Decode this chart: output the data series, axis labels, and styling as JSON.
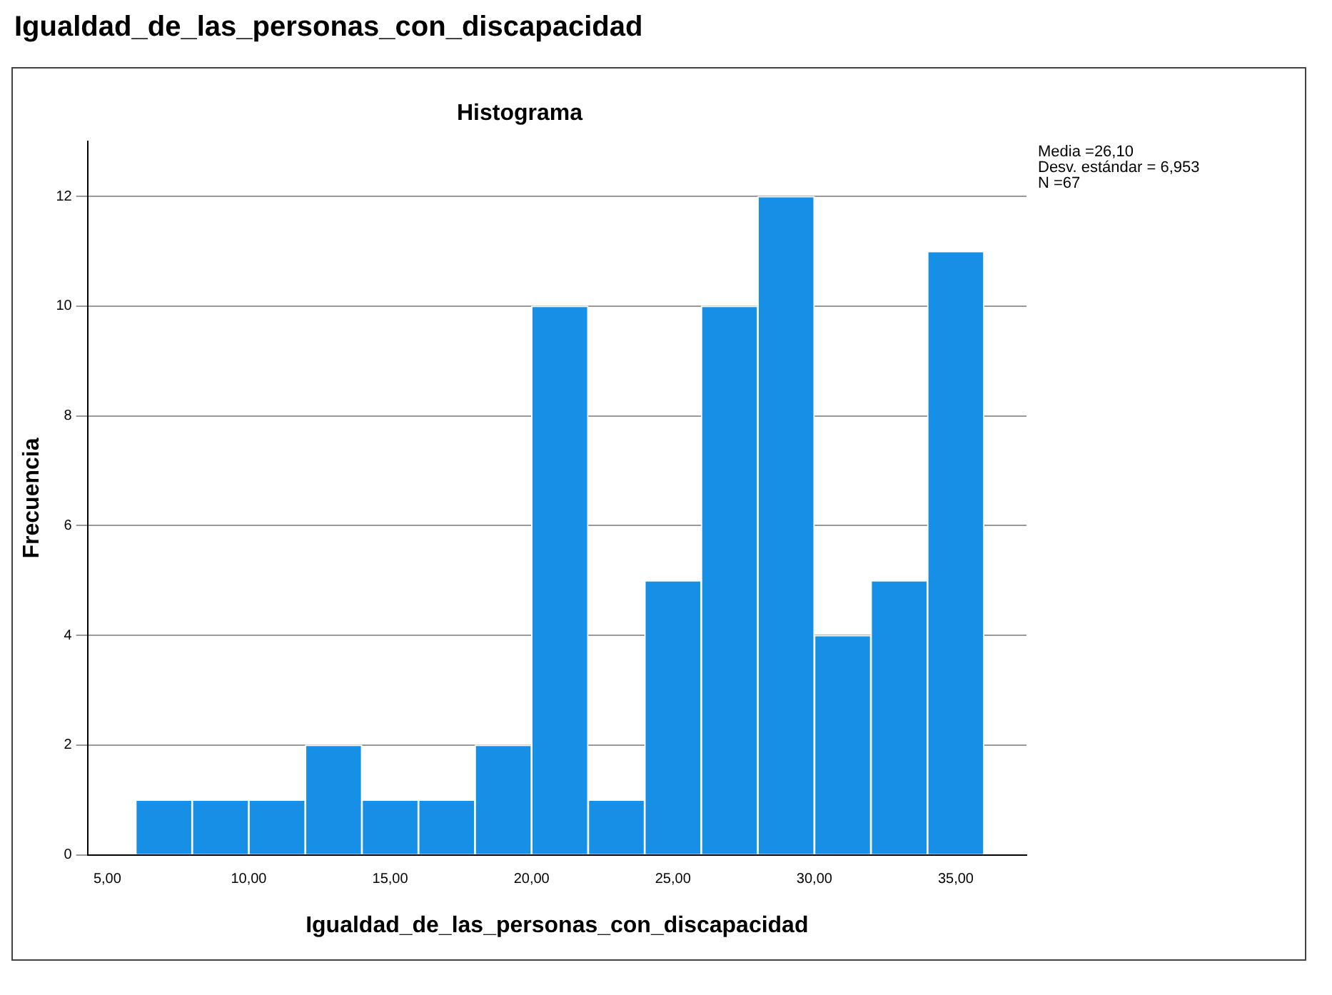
{
  "chart_data": {
    "type": "histogram",
    "title": "Igualdad_de_las_personas_con_discapacidad",
    "subtitle": "Histograma",
    "xlabel": "Igualdad_de_las_personas_con_discapacidad",
    "ylabel": "Frecuencia",
    "bins": [
      6,
      8,
      10,
      12,
      14,
      16,
      18,
      20,
      22,
      24,
      26,
      28,
      30,
      32,
      34,
      36
    ],
    "values": [
      1,
      1,
      1,
      2,
      1,
      1,
      2,
      10,
      1,
      5,
      10,
      12,
      4,
      5,
      11
    ],
    "color": "#1690e6",
    "xlim": [
      4.3,
      37.5
    ],
    "xticks": [
      {
        "value": 5,
        "label": "5,00"
      },
      {
        "value": 10,
        "label": "10,00"
      },
      {
        "value": 15,
        "label": "15,00"
      },
      {
        "value": 20,
        "label": "20,00"
      },
      {
        "value": 25,
        "label": "25,00"
      },
      {
        "value": 30,
        "label": "30,00"
      },
      {
        "value": 35,
        "label": "35,00"
      }
    ],
    "ylim": [
      0,
      13
    ],
    "yticks": [
      0,
      2,
      4,
      6,
      8,
      10,
      12
    ],
    "grid": "y",
    "annotations": [
      "Media =26,10",
      "Desv. estándar = 6,953",
      "N =67"
    ]
  }
}
